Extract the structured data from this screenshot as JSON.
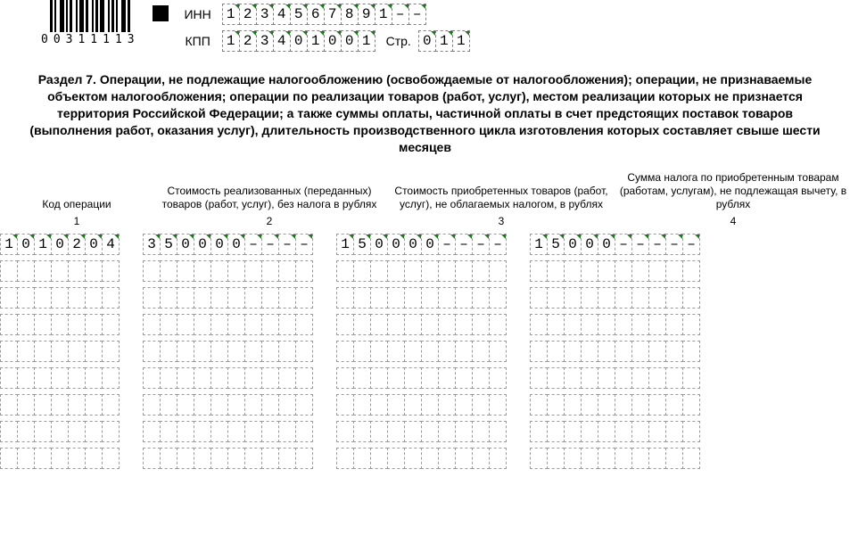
{
  "barcode_text": "00311113",
  "header": {
    "inn_label": "ИНН",
    "kpp_label": "КПП",
    "page_label": "Стр.",
    "inn": [
      "1",
      "2",
      "3",
      "4",
      "5",
      "6",
      "7",
      "8",
      "9",
      "1",
      "–",
      "–"
    ],
    "kpp": [
      "1",
      "2",
      "3",
      "4",
      "0",
      "1",
      "0",
      "0",
      "1"
    ],
    "page": [
      "0",
      "1",
      "1"
    ]
  },
  "section_title": "Раздел 7. Операции, не подлежащие налогообложению (освобождаемые от налогообложения); операции, не признаваемые объектом налогообложения; операции по реализации товаров (работ, услуг), местом реализации которых не признается территория Российской Федерации; а также суммы оплаты, частичной оплаты в счет предстоящих поставок товаров (выполнения работ, оказания услуг), длительность производственного цикла изготовления которых составляет свыше шести месяцев",
  "columns": {
    "c1": {
      "label": "Код операции",
      "num": "1",
      "width": 7
    },
    "c2": {
      "label": "Стоимость реализованных (переданных) товаров (работ, услуг), без налога в рублях",
      "num": "2",
      "width": 10
    },
    "c3": {
      "label": "Стоимость приобретенных товаров (работ, услуг), не облагаемых налогом, в рублях",
      "num": "3",
      "width": 10
    },
    "c4": {
      "label": "Сумма налога по приобретенным товарам (работам, услугам), не подлежащая вычету, в рублях",
      "num": "4",
      "width": 10
    }
  },
  "rows": [
    {
      "c1": [
        "1",
        "0",
        "1",
        "0",
        "2",
        "0",
        "4"
      ],
      "c2": [
        "3",
        "5",
        "0",
        "0",
        "0",
        "0",
        "–",
        "–",
        "–",
        "–"
      ],
      "c3": [
        "1",
        "5",
        "0",
        "0",
        "0",
        "0",
        "–",
        "–",
        "–",
        "–"
      ],
      "c4": [
        "1",
        "5",
        "0",
        "0",
        "0",
        "–",
        "–",
        "–",
        "–",
        "–"
      ],
      "filled": true
    },
    {
      "c1": [
        "",
        "",
        "",
        "",
        "",
        "",
        ""
      ],
      "c2": [
        "",
        "",
        "",
        "",
        "",
        "",
        "",
        "",
        "",
        ""
      ],
      "c3": [
        "",
        "",
        "",
        "",
        "",
        "",
        "",
        "",
        "",
        ""
      ],
      "c4": [
        "",
        "",
        "",
        "",
        "",
        "",
        "",
        "",
        "",
        ""
      ],
      "filled": false
    },
    {
      "c1": [
        "",
        "",
        "",
        "",
        "",
        "",
        ""
      ],
      "c2": [
        "",
        "",
        "",
        "",
        "",
        "",
        "",
        "",
        "",
        ""
      ],
      "c3": [
        "",
        "",
        "",
        "",
        "",
        "",
        "",
        "",
        "",
        ""
      ],
      "c4": [
        "",
        "",
        "",
        "",
        "",
        "",
        "",
        "",
        "",
        ""
      ],
      "filled": false
    },
    {
      "c1": [
        "",
        "",
        "",
        "",
        "",
        "",
        ""
      ],
      "c2": [
        "",
        "",
        "",
        "",
        "",
        "",
        "",
        "",
        "",
        ""
      ],
      "c3": [
        "",
        "",
        "",
        "",
        "",
        "",
        "",
        "",
        "",
        ""
      ],
      "c4": [
        "",
        "",
        "",
        "",
        "",
        "",
        "",
        "",
        "",
        ""
      ],
      "filled": false
    },
    {
      "c1": [
        "",
        "",
        "",
        "",
        "",
        "",
        ""
      ],
      "c2": [
        "",
        "",
        "",
        "",
        "",
        "",
        "",
        "",
        "",
        ""
      ],
      "c3": [
        "",
        "",
        "",
        "",
        "",
        "",
        "",
        "",
        "",
        ""
      ],
      "c4": [
        "",
        "",
        "",
        "",
        "",
        "",
        "",
        "",
        "",
        ""
      ],
      "filled": false
    },
    {
      "c1": [
        "",
        "",
        "",
        "",
        "",
        "",
        ""
      ],
      "c2": [
        "",
        "",
        "",
        "",
        "",
        "",
        "",
        "",
        "",
        ""
      ],
      "c3": [
        "",
        "",
        "",
        "",
        "",
        "",
        "",
        "",
        "",
        ""
      ],
      "c4": [
        "",
        "",
        "",
        "",
        "",
        "",
        "",
        "",
        "",
        ""
      ],
      "filled": false
    },
    {
      "c1": [
        "",
        "",
        "",
        "",
        "",
        "",
        ""
      ],
      "c2": [
        "",
        "",
        "",
        "",
        "",
        "",
        "",
        "",
        "",
        ""
      ],
      "c3": [
        "",
        "",
        "",
        "",
        "",
        "",
        "",
        "",
        "",
        ""
      ],
      "c4": [
        "",
        "",
        "",
        "",
        "",
        "",
        "",
        "",
        "",
        ""
      ],
      "filled": false
    },
    {
      "c1": [
        "",
        "",
        "",
        "",
        "",
        "",
        ""
      ],
      "c2": [
        "",
        "",
        "",
        "",
        "",
        "",
        "",
        "",
        "",
        ""
      ],
      "c3": [
        "",
        "",
        "",
        "",
        "",
        "",
        "",
        "",
        "",
        ""
      ],
      "c4": [
        "",
        "",
        "",
        "",
        "",
        "",
        "",
        "",
        "",
        ""
      ],
      "filled": false
    },
    {
      "c1": [
        "",
        "",
        "",
        "",
        "",
        "",
        ""
      ],
      "c2": [
        "",
        "",
        "",
        "",
        "",
        "",
        "",
        "",
        "",
        ""
      ],
      "c3": [
        "",
        "",
        "",
        "",
        "",
        "",
        "",
        "",
        "",
        ""
      ],
      "c4": [
        "",
        "",
        "",
        "",
        "",
        "",
        "",
        "",
        "",
        ""
      ],
      "filled": false
    }
  ],
  "colors": {
    "cell_border": "#808080",
    "corner_mark": "#1a7a1a",
    "text": "#000000",
    "background": "#ffffff"
  }
}
